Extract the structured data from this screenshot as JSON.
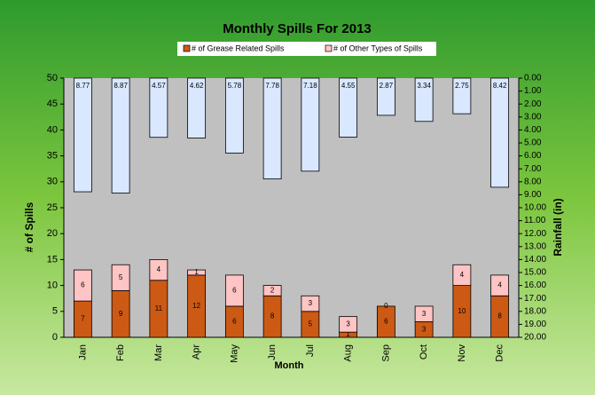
{
  "chart_data": {
    "type": "bar",
    "stacked": true,
    "title": "Monthly Spills For 2013",
    "categories": [
      "Jan",
      "Feb",
      "Mar",
      "Apr",
      "May",
      "Jun",
      "Jul",
      "Aug",
      "Sep",
      "Oct",
      "Nov",
      "Dec"
    ],
    "series": [
      {
        "name": "# of Grease Related Spills",
        "color": "#cc5a14",
        "values": [
          7,
          9,
          11,
          12,
          6,
          8,
          5,
          1,
          6,
          3,
          10,
          8
        ]
      },
      {
        "name": "# of Other Types of Spills",
        "color": "#ffc4c4",
        "values": [
          6,
          5,
          4,
          1,
          6,
          2,
          3,
          3,
          0,
          3,
          4,
          4
        ]
      },
      {
        "color": "#d9e8ff",
        "axis": "y2",
        "values": [
          8.77,
          8.87,
          4.57,
          4.62,
          5.78,
          7.78,
          7.18,
          4.55,
          2.87,
          3.34,
          2.75,
          8.42
        ]
      }
    ],
    "x_label": "Month",
    "y_label": "# of Spills",
    "y2_label": "Rainfall (in)",
    "ylim": [
      0,
      50
    ],
    "yticks": [
      0,
      5,
      10,
      15,
      20,
      25,
      30,
      35,
      40,
      45,
      50
    ],
    "y2lim": [
      20,
      0
    ],
    "y2_reversed": true,
    "y2ticks": [
      {
        "value": 0,
        "label": "0.00"
      },
      {
        "value": 1,
        "label": "1.00"
      },
      {
        "value": 2,
        "label": "2.00"
      },
      {
        "value": 3,
        "label": "3.00"
      },
      {
        "value": 4,
        "label": "4.00"
      },
      {
        "value": 5,
        "label": "5.00"
      },
      {
        "value": 6,
        "label": "6.00"
      },
      {
        "value": 7,
        "label": "7.00"
      },
      {
        "value": 8,
        "label": "8.00"
      },
      {
        "value": 9,
        "label": "9.00"
      },
      {
        "value": 10,
        "label": "10.00"
      },
      {
        "value": 11,
        "label": "11.00"
      },
      {
        "value": 12,
        "label": "12.00"
      },
      {
        "value": 13,
        "label": "13.00"
      },
      {
        "value": 14,
        "label": "14.00"
      },
      {
        "value": 15,
        "label": "15.00"
      },
      {
        "value": 16,
        "label": "16.00"
      },
      {
        "value": 17,
        "label": "17.00"
      },
      {
        "value": 18,
        "label": "18.00"
      },
      {
        "value": 19,
        "label": "19.00"
      },
      {
        "value": 20,
        "label": "20.00"
      }
    ],
    "grid": false,
    "legend": "top"
  }
}
